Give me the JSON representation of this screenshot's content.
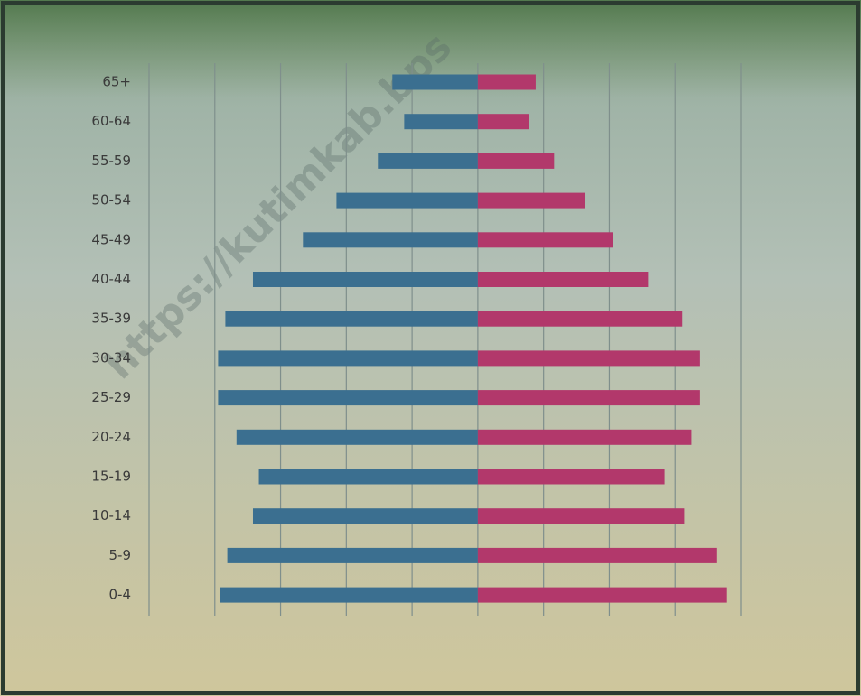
{
  "chart_data": {
    "type": "pyramid",
    "watermark": "https://kutimkab.bps",
    "categories": [
      "65+",
      "60-64",
      "55-59",
      "50-54",
      "45-49",
      "40-44",
      "35-39",
      "30-34",
      "25-29",
      "20-24",
      "15-19",
      "10-14",
      "5-9",
      "0-4"
    ],
    "series": [
      {
        "color": "#3b6f90",
        "values": [
          -1.3,
          -1.12,
          -1.52,
          -2.15,
          -2.66,
          -3.42,
          -3.84,
          -3.95,
          -3.95,
          -3.67,
          -3.33,
          -3.42,
          -3.81,
          -3.92
        ]
      },
      {
        "color": "#b2386b",
        "values": [
          0.88,
          0.78,
          1.16,
          1.63,
          2.05,
          2.59,
          3.11,
          3.38,
          3.38,
          3.25,
          2.84,
          3.14,
          3.64,
          3.79
        ]
      }
    ],
    "xlim": [
      -5,
      4
    ],
    "xticks": [
      -5,
      -4,
      -3,
      -2,
      -1,
      0,
      1,
      2,
      3,
      4
    ],
    "grid": true
  }
}
